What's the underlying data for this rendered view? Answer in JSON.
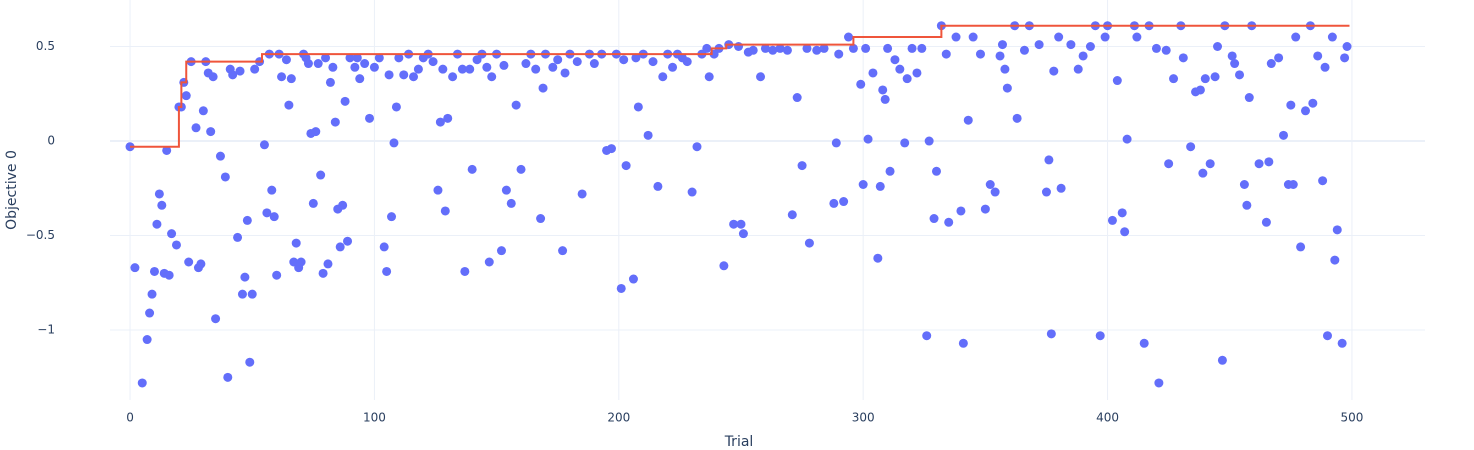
{
  "chart_data": {
    "type": "scatter",
    "x_label": "Trial",
    "y_label": "Objective 0",
    "xlim": [
      -8.2,
      529.9
    ],
    "ylim": [
      -1.37,
      0.746
    ],
    "xticks": [
      0,
      100,
      200,
      300,
      400,
      500
    ],
    "yticks": [
      0.5,
      0,
      {
        "value": -0.5,
        "label": "−0.5"
      },
      {
        "value": -1,
        "label": "−1"
      }
    ],
    "grid": true,
    "series": [
      {
        "type": "scatter",
        "color": "#636efa",
        "x": [
          0,
          2,
          5,
          7,
          8,
          9,
          10,
          11,
          12,
          13,
          14,
          15,
          16,
          17,
          19,
          20,
          21,
          22,
          23,
          24,
          25,
          27,
          28,
          29,
          30,
          31,
          32,
          33,
          34,
          35,
          37,
          39,
          40,
          41,
          42,
          44,
          45,
          46,
          47,
          48,
          49,
          50,
          51,
          53,
          55,
          56,
          57,
          58,
          59,
          60,
          61,
          62,
          64,
          65,
          66,
          67,
          68,
          69,
          70,
          71,
          72,
          73,
          74,
          75,
          76,
          77,
          78,
          79,
          80,
          81,
          82,
          83,
          84,
          85,
          86,
          87,
          88,
          89,
          90,
          92,
          93,
          94,
          96,
          98,
          100,
          102,
          104,
          105,
          106,
          107,
          108,
          109,
          110,
          112,
          114,
          116,
          118,
          120,
          122,
          124,
          126,
          127,
          128,
          129,
          130,
          132,
          134,
          136,
          137,
          139,
          140,
          142,
          144,
          146,
          147,
          148,
          150,
          152,
          153,
          154,
          156,
          158,
          160,
          162,
          164,
          166,
          168,
          169,
          170,
          173,
          175,
          177,
          178,
          180,
          183,
          185,
          188,
          190,
          193,
          195,
          197,
          199,
          201,
          202,
          203,
          206,
          207,
          208,
          210,
          212,
          214,
          216,
          218,
          220,
          222,
          224,
          226,
          228,
          230,
          232,
          234,
          236,
          237,
          239,
          241,
          243,
          245,
          247,
          249,
          250,
          251,
          253,
          255,
          258,
          260,
          263,
          266,
          269,
          271,
          273,
          275,
          277,
          278,
          281,
          284,
          288,
          289,
          290,
          292,
          294,
          296,
          299,
          300,
          301,
          302,
          304,
          306,
          307,
          308,
          309,
          310,
          311,
          313,
          315,
          317,
          318,
          320,
          322,
          324,
          326,
          327,
          329,
          330,
          332,
          334,
          335,
          338,
          340,
          341,
          343,
          345,
          348,
          350,
          352,
          354,
          356,
          357,
          358,
          359,
          362,
          363,
          366,
          368,
          372,
          375,
          376,
          377,
          378,
          380,
          381,
          385,
          388,
          390,
          393,
          395,
          397,
          399,
          400,
          402,
          404,
          406,
          407,
          408,
          411,
          412,
          415,
          417,
          420,
          421,
          424,
          425,
          427,
          430,
          431,
          434,
          436,
          438,
          439,
          440,
          442,
          444,
          445,
          447,
          448,
          451,
          452,
          454,
          456,
          457,
          458,
          459,
          462,
          465,
          466,
          467,
          470,
          472,
          474,
          475,
          476,
          477,
          479,
          481,
          483,
          484,
          486,
          488,
          489,
          490,
          492,
          493,
          494,
          496,
          497,
          498
        ],
        "values": [
          -0.03,
          -0.67,
          -1.28,
          -1.05,
          -0.91,
          -0.81,
          -0.69,
          -0.44,
          -0.28,
          -0.34,
          -0.7,
          -0.05,
          -0.71,
          -0.49,
          -0.55,
          0.18,
          0.18,
          0.31,
          0.24,
          -0.64,
          0.42,
          0.07,
          -0.67,
          -0.65,
          0.16,
          0.42,
          0.36,
          0.05,
          0.34,
          -0.94,
          -0.08,
          -0.19,
          -1.25,
          0.38,
          0.35,
          -0.51,
          0.37,
          -0.81,
          -0.72,
          -0.42,
          -1.17,
          -0.81,
          0.38,
          0.42,
          -0.02,
          -0.38,
          0.46,
          -0.26,
          -0.4,
          -0.71,
          0.46,
          0.34,
          0.43,
          0.19,
          0.33,
          -0.64,
          -0.54,
          -0.67,
          -0.64,
          0.46,
          0.44,
          0.41,
          0.04,
          -0.33,
          0.05,
          0.41,
          -0.18,
          -0.7,
          0.44,
          -0.65,
          0.31,
          0.39,
          0.1,
          -0.36,
          -0.56,
          -0.34,
          0.21,
          -0.53,
          0.44,
          0.39,
          0.44,
          0.33,
          0.41,
          0.12,
          0.39,
          0.44,
          -0.56,
          -0.69,
          0.35,
          -0.4,
          -0.01,
          0.18,
          0.44,
          0.35,
          0.46,
          0.34,
          0.38,
          0.44,
          0.46,
          0.42,
          -0.26,
          0.1,
          0.38,
          -0.37,
          0.12,
          0.34,
          0.46,
          0.38,
          -0.69,
          0.38,
          -0.15,
          0.43,
          0.46,
          0.39,
          -0.64,
          0.34,
          0.46,
          -0.58,
          0.4,
          -0.26,
          -0.33,
          0.19,
          -0.15,
          0.41,
          0.46,
          0.38,
          -0.41,
          0.28,
          0.46,
          0.39,
          0.43,
          -0.58,
          0.36,
          0.46,
          0.42,
          -0.28,
          0.46,
          0.41,
          0.46,
          -0.05,
          -0.04,
          0.46,
          -0.78,
          0.43,
          -0.13,
          -0.73,
          0.44,
          0.18,
          0.46,
          0.03,
          0.42,
          -0.24,
          0.34,
          0.46,
          0.39,
          0.46,
          0.44,
          0.42,
          -0.27,
          -0.03,
          0.46,
          0.49,
          0.34,
          0.46,
          0.49,
          -0.66,
          0.51,
          -0.44,
          0.5,
          -0.44,
          -0.49,
          0.47,
          0.48,
          0.34,
          0.49,
          0.48,
          0.49,
          0.48,
          -0.39,
          0.23,
          -0.13,
          0.49,
          -0.54,
          0.48,
          0.49,
          -0.33,
          -0.01,
          0.46,
          -0.32,
          0.55,
          0.49,
          0.3,
          -0.23,
          0.49,
          0.01,
          0.36,
          -0.62,
          -0.24,
          0.27,
          0.22,
          0.49,
          -0.16,
          0.43,
          0.38,
          -0.01,
          0.33,
          0.49,
          0.36,
          0.49,
          -1.03,
          0.0,
          -0.41,
          -0.16,
          0.61,
          0.46,
          -0.43,
          0.55,
          -0.37,
          -1.07,
          0.11,
          0.55,
          0.46,
          -0.36,
          -0.23,
          -0.27,
          0.45,
          0.51,
          0.38,
          0.28,
          0.61,
          0.12,
          0.48,
          0.61,
          0.51,
          -0.27,
          -0.1,
          -1.02,
          0.37,
          0.55,
          -0.25,
          0.51,
          0.38,
          0.45,
          0.5,
          0.61,
          -1.03,
          0.55,
          0.61,
          -0.42,
          0.32,
          -0.38,
          -0.48,
          0.01,
          0.61,
          0.55,
          -1.07,
          0.61,
          0.49,
          -1.28,
          0.48,
          -0.12,
          0.33,
          0.61,
          0.44,
          -0.03,
          0.26,
          0.27,
          -0.17,
          0.33,
          -0.12,
          0.34,
          0.5,
          -1.16,
          0.61,
          0.45,
          0.41,
          0.35,
          -0.23,
          -0.34,
          0.23,
          0.61,
          -0.12,
          -0.43,
          -0.11,
          0.41,
          0.44,
          0.03,
          -0.23,
          0.19,
          -0.23,
          0.55,
          -0.56,
          0.16,
          0.61,
          0.2,
          0.45,
          -0.21,
          0.39,
          -1.03,
          0.55,
          -0.63,
          -0.47,
          -1.07,
          0.44,
          0.5
        ]
      },
      {
        "type": "line",
        "shape": "hv",
        "color": "#ef553b",
        "x": [
          0,
          20,
          21,
          23,
          54,
          238,
          244,
          296,
          332,
          499
        ],
        "values": [
          -0.03,
          0.18,
          0.31,
          0.42,
          0.46,
          0.49,
          0.51,
          0.55,
          0.61,
          0.61
        ]
      }
    ]
  }
}
